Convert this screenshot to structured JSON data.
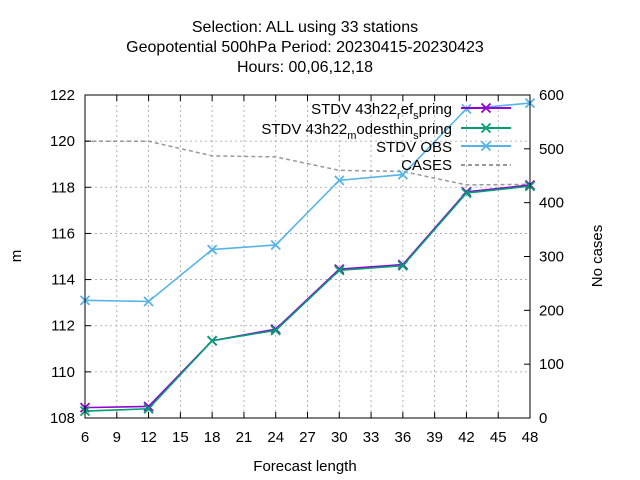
{
  "chart_data": {
    "type": "line",
    "title_lines": [
      "Selection: ALL using     33 stations",
      "Geopotential 500hPa   Period: 20230415-20230423",
      "Hours:  00,06,12,18"
    ],
    "xlabel": "Forecast length",
    "ylabel": "m",
    "y2label": "No cases",
    "xlim": [
      6,
      48
    ],
    "ylim": [
      108,
      122
    ],
    "y2lim": [
      0,
      600
    ],
    "xticks": [
      6,
      9,
      12,
      15,
      18,
      21,
      24,
      27,
      30,
      33,
      36,
      39,
      42,
      45,
      48
    ],
    "yticks": [
      108,
      110,
      112,
      114,
      116,
      118,
      120,
      122
    ],
    "y2ticks": [
      0,
      100,
      200,
      300,
      400,
      500,
      600
    ],
    "grid": true,
    "legend_position": "top-right",
    "x": [
      6,
      12,
      18,
      24,
      30,
      36,
      42,
      48
    ],
    "series": [
      {
        "name": "STDV 43h22_ref_spring",
        "legend_main": "STDV 43h22",
        "legend_sub1": "r",
        "legend_mid": "ef",
        "legend_sub2": "s",
        "legend_end": "pring",
        "color": "#9400d3",
        "marker": "x",
        "axis": "y",
        "values": [
          108.45,
          108.5,
          111.35,
          111.85,
          114.45,
          114.65,
          117.8,
          118.1
        ]
      },
      {
        "name": "STDV 43h22_modesthin_spring",
        "legend_main": "STDV 43h22",
        "legend_sub1": "m",
        "legend_mid": "odesthin",
        "legend_sub2": "s",
        "legend_end": "pring",
        "color": "#009e73",
        "marker": "x",
        "axis": "y",
        "values": [
          108.3,
          108.4,
          111.35,
          111.8,
          114.4,
          114.6,
          117.75,
          118.05
        ]
      },
      {
        "name": "STDV OBS",
        "color": "#56b4e9",
        "marker": "x",
        "axis": "y",
        "values": [
          113.1,
          113.05,
          115.3,
          115.5,
          118.3,
          118.55,
          121.4,
          121.65
        ]
      },
      {
        "name": "CASES",
        "color": "#999999",
        "dashed": true,
        "axis": "y2",
        "values": [
          514,
          514,
          487,
          485,
          460,
          458,
          433,
          434
        ]
      }
    ]
  }
}
